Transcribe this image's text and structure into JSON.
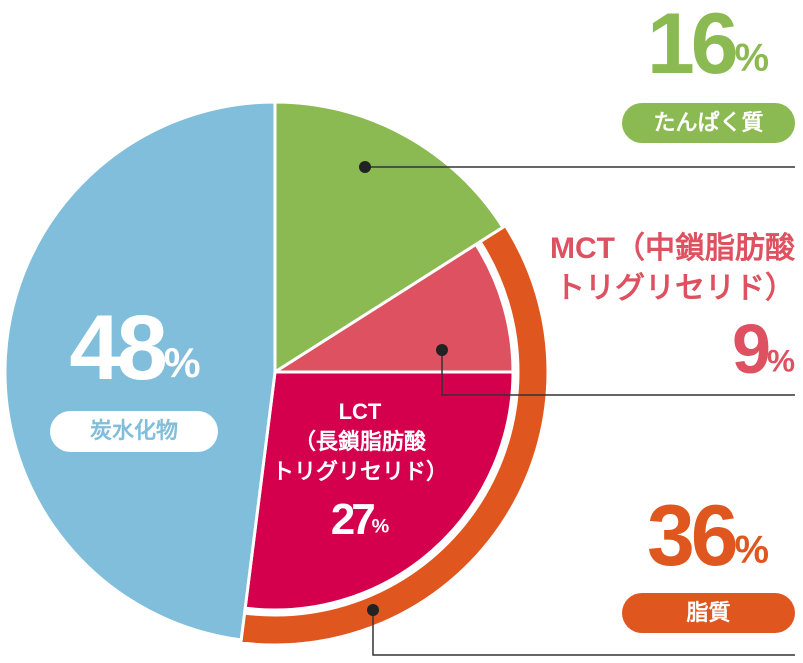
{
  "chart_data": {
    "type": "pie",
    "slices": [
      {
        "name": [
          "たんぱく質"
        ],
        "value": 16,
        "value_label": "16%",
        "color": "#8cba52"
      },
      {
        "name": [
          "脂質"
        ],
        "value": 36,
        "value_label": "36%",
        "color": "#e0561f",
        "parts": [
          {
            "name": [
              "MCT（中鎖脂肪酸",
              "トリグリセリド）"
            ],
            "value": 9,
            "value_label": "9%",
            "color": "#dd5160"
          },
          {
            "name": [
              "LCT",
              "（長鎖脂肪酸",
              "トリグリセリド）"
            ],
            "value": 27,
            "value_label": "27%",
            "color": "#d4004e"
          }
        ]
      },
      {
        "name": [
          "炭水化物"
        ],
        "value": 48,
        "value_label": "48%",
        "color": "#80bedb"
      }
    ]
  }
}
